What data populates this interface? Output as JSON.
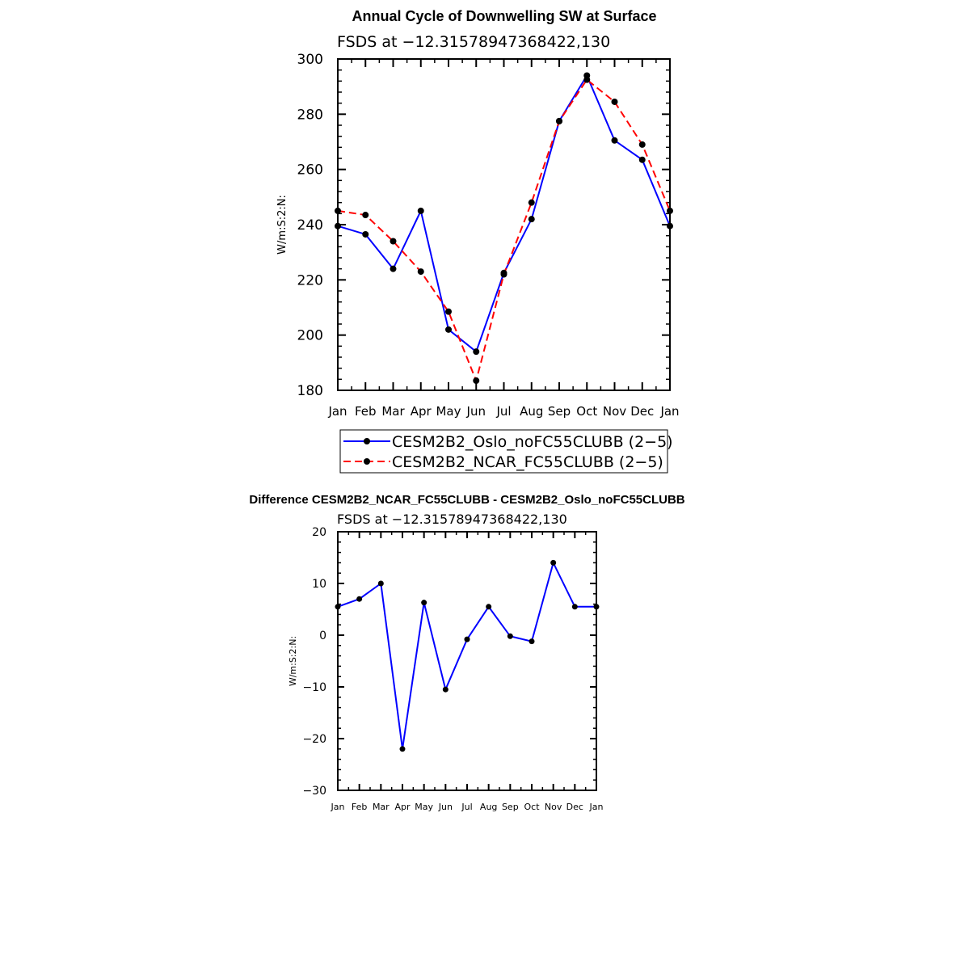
{
  "chart_data": [
    {
      "type": "line",
      "title": "Annual Cycle of Downwelling SW at Surface",
      "subtitle": "FSDS at −12.31578947368422,130",
      "ylabel": "W/m:S:2:N:",
      "xlabel": "",
      "categories": [
        "Jan",
        "Feb",
        "Mar",
        "Apr",
        "May",
        "Jun",
        "Jul",
        "Aug",
        "Sep",
        "Oct",
        "Nov",
        "Dec",
        "Jan"
      ],
      "ylim": [
        180,
        300
      ],
      "yticks": [
        180,
        200,
        220,
        240,
        260,
        280,
        300
      ],
      "ytick_labels": [
        "180",
        "200",
        "220",
        "240",
        "260",
        "280",
        "300"
      ],
      "series": [
        {
          "name": "CESM2B2_Oslo_noFC55CLUBB (2−5)",
          "color": "#0000ff",
          "dash": "solid",
          "values": [
            239.5,
            236.5,
            224.0,
            245.0,
            202.0,
            194.0,
            222.5,
            242.0,
            277.5,
            294.0,
            270.5,
            263.5,
            239.5
          ]
        },
        {
          "name": "CESM2B2_NCAR_FC55CLUBB (2−5)",
          "color": "#ff0000",
          "dash": "dashed",
          "values": [
            245.0,
            243.5,
            234.0,
            223.0,
            208.5,
            183.5,
            222.0,
            248.0,
            277.5,
            292.5,
            284.5,
            269.0,
            245.0
          ]
        }
      ],
      "legend": "below"
    },
    {
      "type": "line",
      "title": "Difference CESM2B2_NCAR_FC55CLUBB - CESM2B2_Oslo_noFC55CLUBB",
      "subtitle": "FSDS at −12.31578947368422,130",
      "ylabel": "W/m:S:2:N:",
      "xlabel": "",
      "categories": [
        "Jan",
        "Feb",
        "Mar",
        "Apr",
        "May",
        "Jun",
        "Jul",
        "Aug",
        "Sep",
        "Oct",
        "Nov",
        "Dec",
        "Jan"
      ],
      "ylim": [
        -30,
        20
      ],
      "yticks": [
        -30,
        -20,
        -10,
        0,
        10,
        20
      ],
      "ytick_labels": [
        "−30",
        "−20",
        "−10",
        "0",
        "10",
        "20"
      ],
      "series": [
        {
          "color": "#0000ff",
          "dash": "solid",
          "values": [
            5.5,
            7.0,
            10.0,
            -22.0,
            6.3,
            -10.5,
            -0.8,
            5.5,
            -0.2,
            -1.2,
            14.0,
            5.5,
            5.5
          ]
        }
      ]
    }
  ]
}
